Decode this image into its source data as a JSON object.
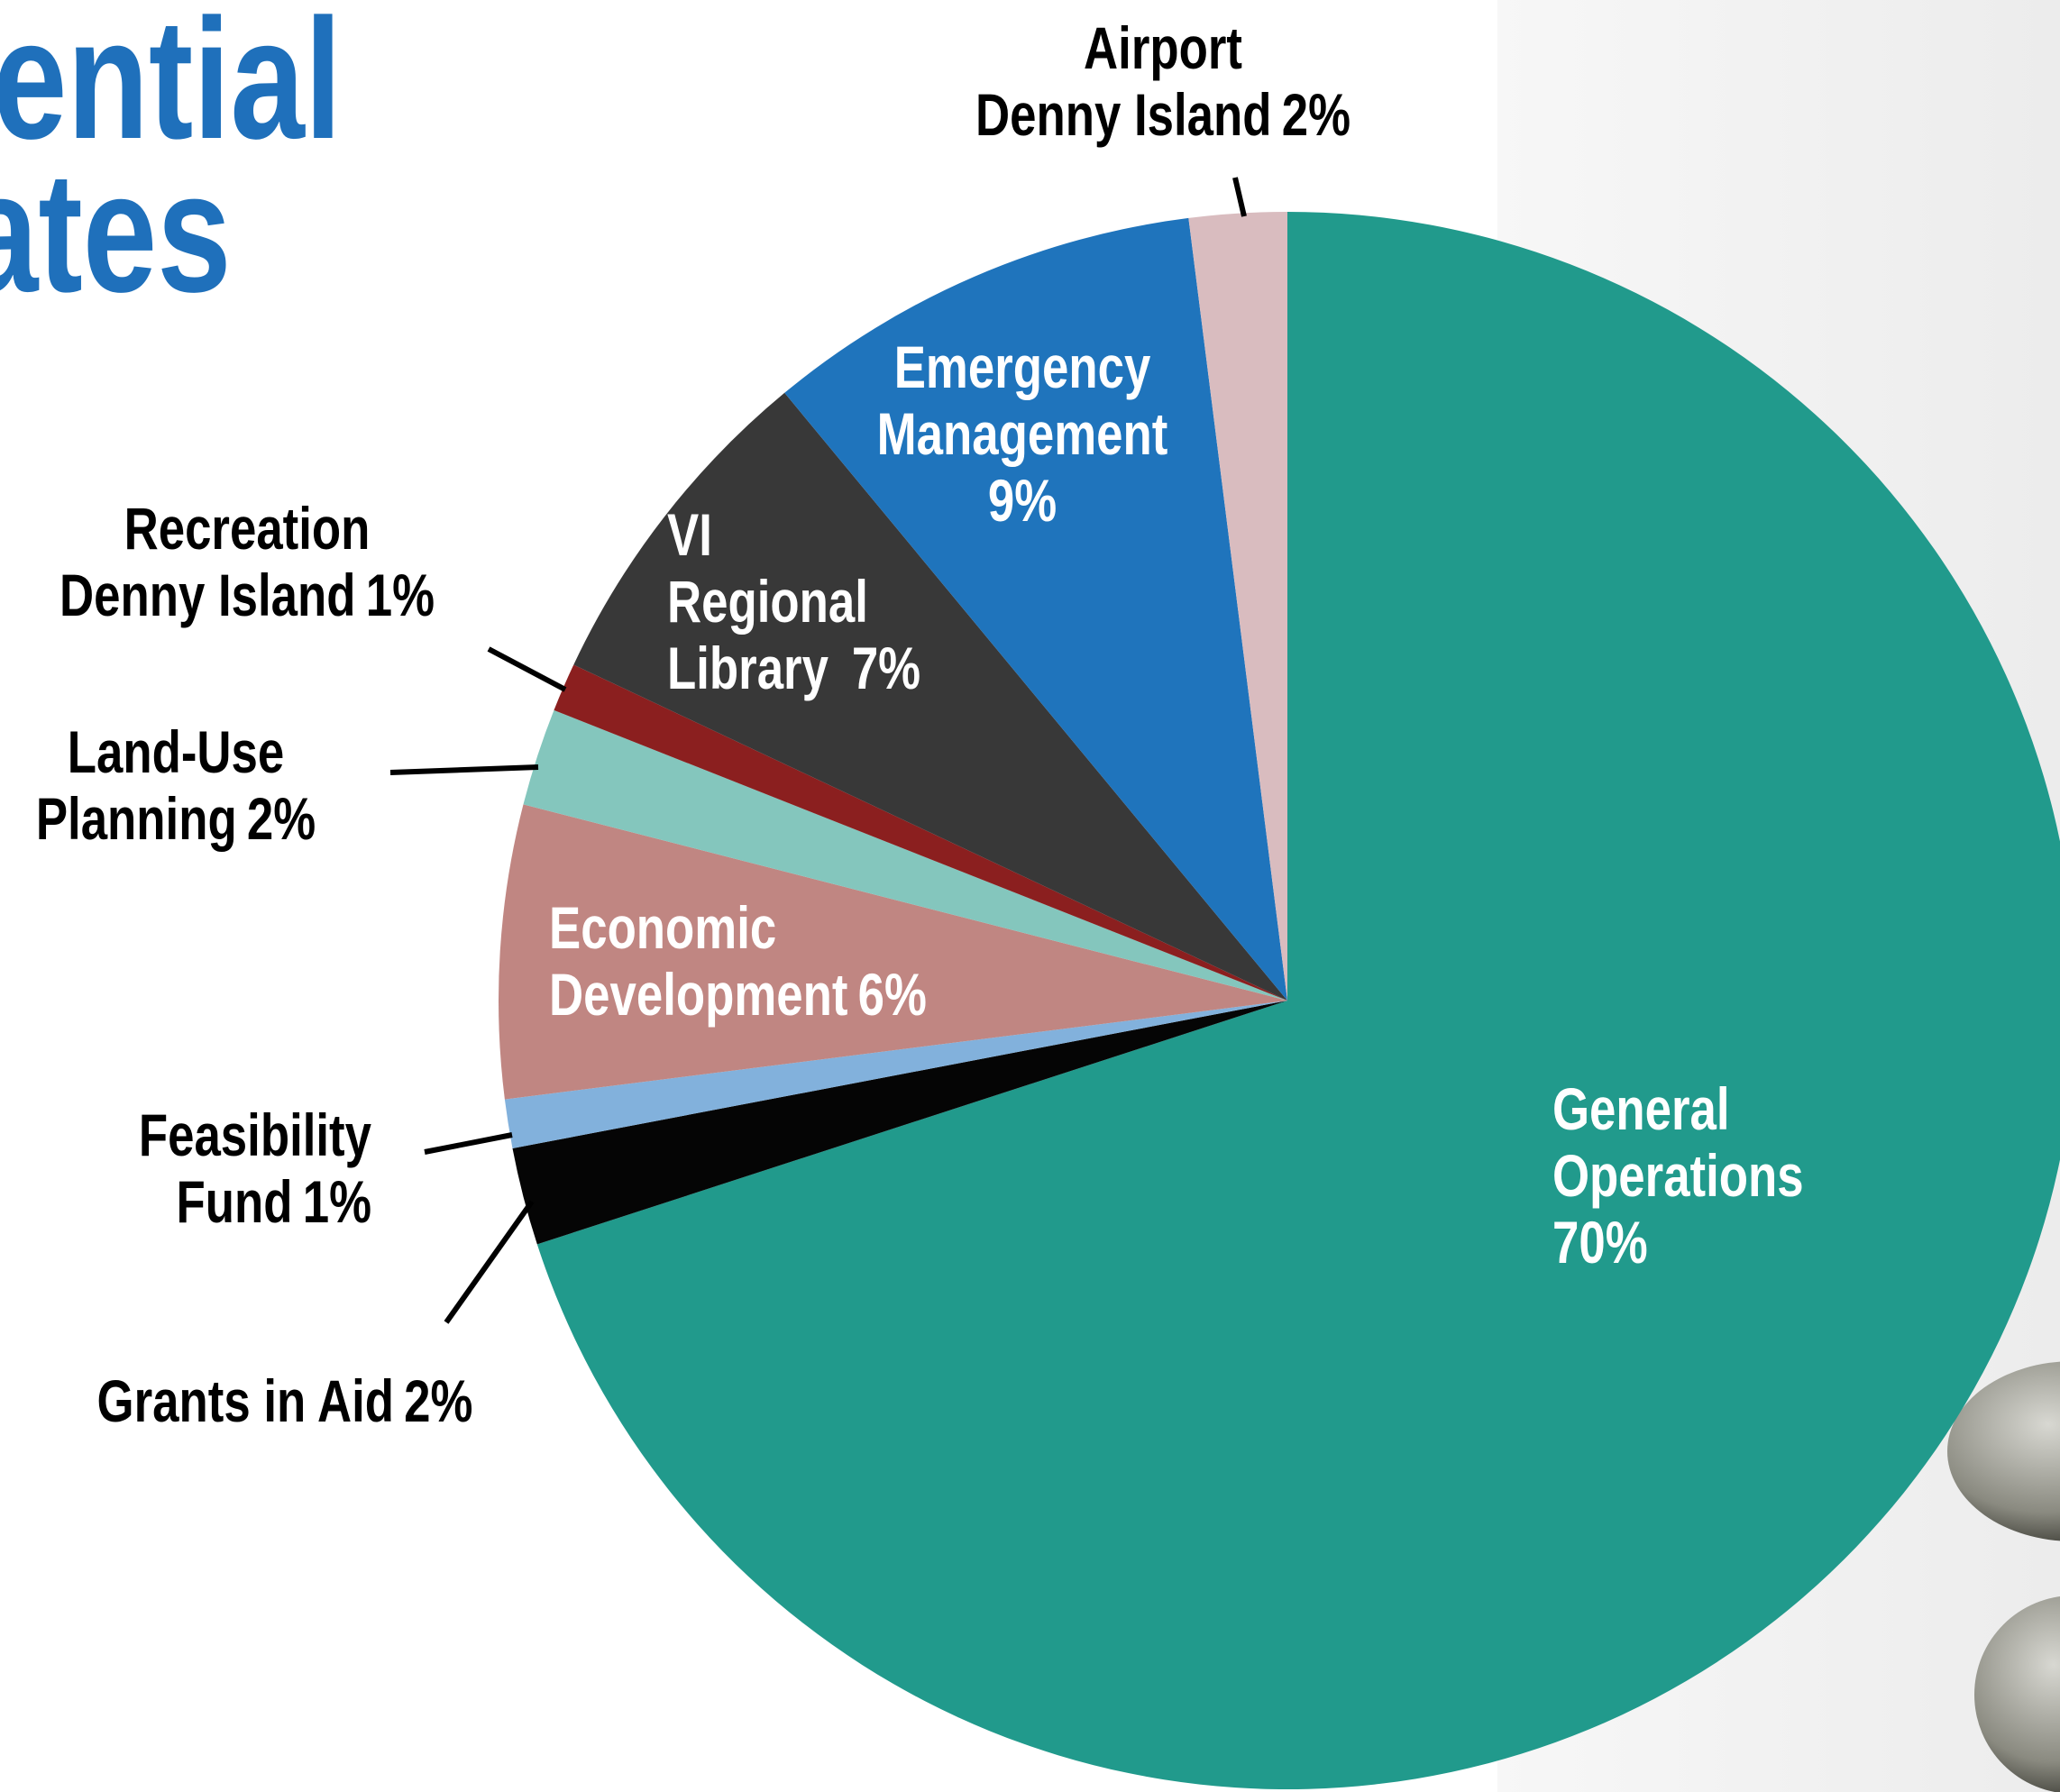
{
  "chart_data": {
    "type": "pie",
    "title": [
      "ential",
      "ates"
    ],
    "categories": [
      [
        "General",
        "Operations"
      ],
      [
        "Grants in Aid"
      ],
      [
        "Feasibility",
        "Fund"
      ],
      [
        "Economic",
        "Development"
      ],
      [
        "Land-Use",
        "Planning"
      ],
      [
        "Recreation",
        "Denny Island"
      ],
      [
        "VI",
        "Regional",
        "Library "
      ],
      [
        "Emergency",
        "Management"
      ],
      [
        "Airport",
        "Denny Island"
      ]
    ],
    "values": [
      70,
      2,
      1,
      6,
      2,
      1,
      7,
      9,
      2
    ],
    "value_labels": [
      "70%",
      "2%",
      "1%",
      "6%",
      "2%",
      "1%",
      "7%",
      "9%",
      "2%"
    ],
    "colors": [
      "#219a8c",
      "#050505",
      "#82b1dc",
      "#c08682",
      "#84c6bd",
      "#8b1f1f",
      "#383838",
      "#1f74bc",
      "#d9bcbf"
    ]
  }
}
